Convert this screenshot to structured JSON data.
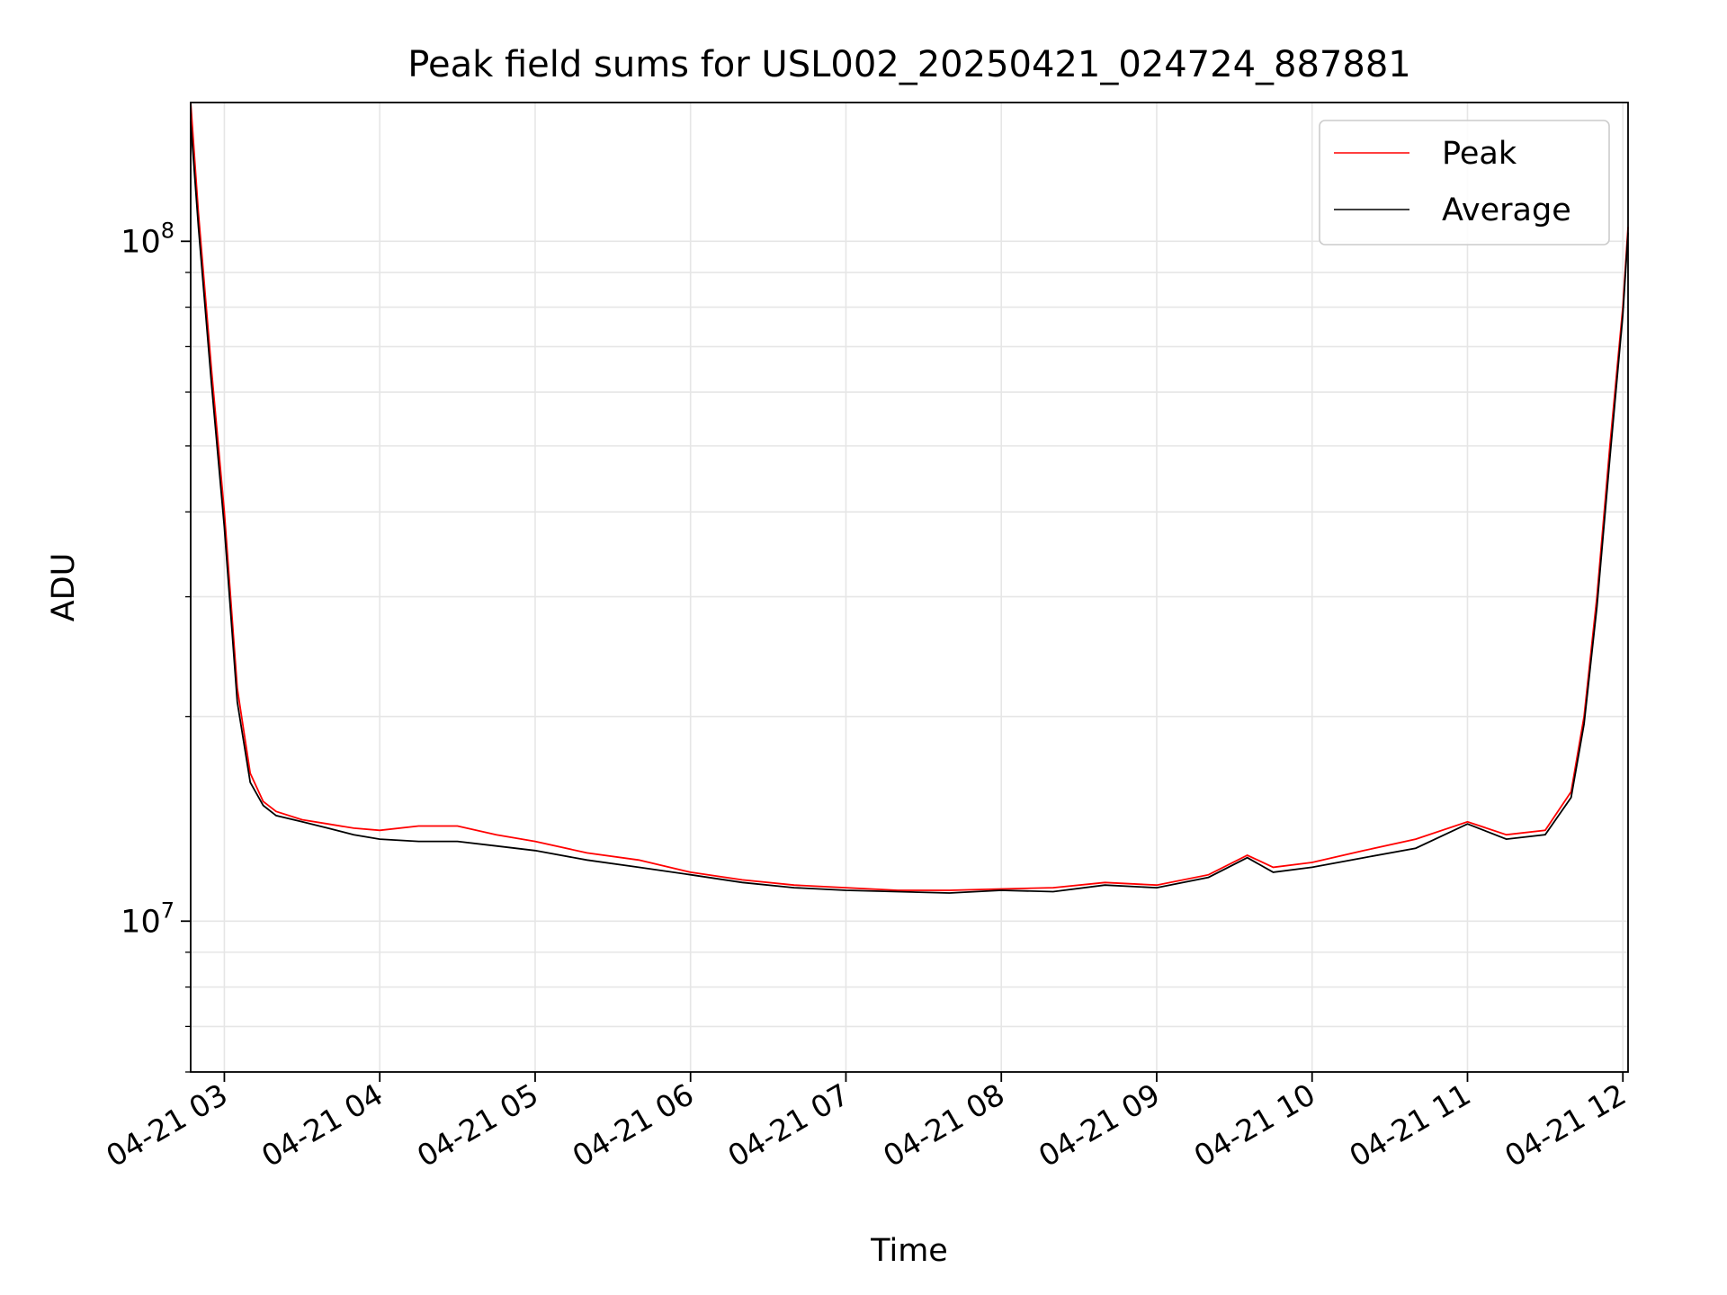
{
  "chart_data": {
    "type": "line",
    "title": "Peak field sums for USL002_20250421_024724_887881",
    "xlabel": "Time",
    "ylabel": "ADU",
    "y_scale": "log",
    "xlim": [
      "2025-04-21 02:47",
      "2025-04-21 12:02"
    ],
    "ylim": [
      6000000,
      160000000
    ],
    "x_tick_labels": [
      "04-21 03",
      "04-21 04",
      "04-21 05",
      "04-21 06",
      "04-21 07",
      "04-21 08",
      "04-21 09",
      "04-21 10",
      "04-21 11",
      "04-21 12"
    ],
    "x_tick_times": [
      "2025-04-21 03:00",
      "2025-04-21 04:00",
      "2025-04-21 05:00",
      "2025-04-21 06:00",
      "2025-04-21 07:00",
      "2025-04-21 08:00",
      "2025-04-21 09:00",
      "2025-04-21 10:00",
      "2025-04-21 11:00",
      "2025-04-21 12:00"
    ],
    "y_major_ticks": [
      {
        "value": 10000000,
        "base": "10",
        "exp": "7"
      },
      {
        "value": 100000000,
        "base": "10",
        "exp": "8"
      }
    ],
    "grid": true,
    "legend_position": "top-right",
    "series": [
      {
        "name": "Peak",
        "color": "#ff0000",
        "x": [
          "2025-04-21 02:47",
          "2025-04-21 02:50",
          "2025-04-21 02:55",
          "2025-04-21 03:00",
          "2025-04-21 03:05",
          "2025-04-21 03:10",
          "2025-04-21 03:15",
          "2025-04-21 03:20",
          "2025-04-21 03:30",
          "2025-04-21 03:40",
          "2025-04-21 03:50",
          "2025-04-21 04:00",
          "2025-04-21 04:15",
          "2025-04-21 04:30",
          "2025-04-21 04:45",
          "2025-04-21 05:00",
          "2025-04-21 05:20",
          "2025-04-21 05:40",
          "2025-04-21 06:00",
          "2025-04-21 06:20",
          "2025-04-21 06:40",
          "2025-04-21 07:00",
          "2025-04-21 07:20",
          "2025-04-21 07:40",
          "2025-04-21 08:00",
          "2025-04-21 08:20",
          "2025-04-21 08:40",
          "2025-04-21 09:00",
          "2025-04-21 09:20",
          "2025-04-21 09:35",
          "2025-04-21 09:45",
          "2025-04-21 10:00",
          "2025-04-21 10:20",
          "2025-04-21 10:40",
          "2025-04-21 11:00",
          "2025-04-21 11:15",
          "2025-04-21 11:30",
          "2025-04-21 11:40",
          "2025-04-21 11:45",
          "2025-04-21 11:50",
          "2025-04-21 11:55",
          "2025-04-21 12:00",
          "2025-04-21 12:02"
        ],
        "values": [
          160000000,
          110000000,
          65000000,
          40000000,
          22000000,
          16500000,
          15000000,
          14500000,
          14100000,
          13900000,
          13700000,
          13600000,
          13800000,
          13800000,
          13400000,
          13100000,
          12600000,
          12300000,
          11800000,
          11500000,
          11300000,
          11200000,
          11100000,
          11100000,
          11150000,
          11200000,
          11400000,
          11300000,
          11700000,
          12500000,
          12000000,
          12200000,
          12700000,
          13200000,
          14000000,
          13400000,
          13600000,
          15500000,
          20000000,
          30000000,
          50000000,
          80000000,
          105000000
        ]
      },
      {
        "name": "Average",
        "color": "#000000",
        "x": [
          "2025-04-21 02:47",
          "2025-04-21 02:50",
          "2025-04-21 02:55",
          "2025-04-21 03:00",
          "2025-04-21 03:05",
          "2025-04-21 03:10",
          "2025-04-21 03:15",
          "2025-04-21 03:20",
          "2025-04-21 03:30",
          "2025-04-21 03:40",
          "2025-04-21 03:50",
          "2025-04-21 04:00",
          "2025-04-21 04:15",
          "2025-04-21 04:30",
          "2025-04-21 04:45",
          "2025-04-21 05:00",
          "2025-04-21 05:20",
          "2025-04-21 05:40",
          "2025-04-21 06:00",
          "2025-04-21 06:20",
          "2025-04-21 06:40",
          "2025-04-21 07:00",
          "2025-04-21 07:20",
          "2025-04-21 07:40",
          "2025-04-21 08:00",
          "2025-04-21 08:20",
          "2025-04-21 08:40",
          "2025-04-21 09:00",
          "2025-04-21 09:20",
          "2025-04-21 09:35",
          "2025-04-21 09:45",
          "2025-04-21 10:00",
          "2025-04-21 10:20",
          "2025-04-21 10:40",
          "2025-04-21 11:00",
          "2025-04-21 11:15",
          "2025-04-21 11:30",
          "2025-04-21 11:40",
          "2025-04-21 11:45",
          "2025-04-21 11:50",
          "2025-04-21 11:55",
          "2025-04-21 12:00",
          "2025-04-21 12:02"
        ],
        "values": [
          150000000,
          105000000,
          62000000,
          38000000,
          21000000,
          16000000,
          14800000,
          14300000,
          14000000,
          13700000,
          13400000,
          13200000,
          13100000,
          13100000,
          12900000,
          12700000,
          12300000,
          12000000,
          11700000,
          11400000,
          11200000,
          11100000,
          11050000,
          11000000,
          11100000,
          11050000,
          11300000,
          11200000,
          11600000,
          12400000,
          11800000,
          12000000,
          12400000,
          12800000,
          13900000,
          13200000,
          13400000,
          15200000,
          19500000,
          29000000,
          48000000,
          78000000,
          103000000
        ]
      }
    ]
  }
}
